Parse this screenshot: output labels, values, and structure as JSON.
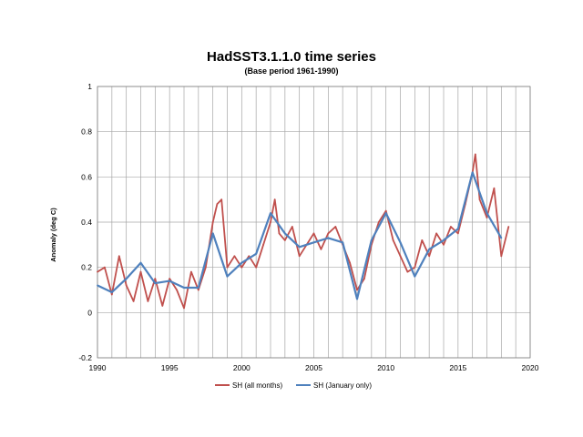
{
  "chart_data": {
    "type": "line",
    "title": "HadSST3.1.1.0  time series",
    "subtitle": "(Base period 1961-1990)",
    "xlabel": "",
    "ylabel": "Anomaly (deg C)",
    "xlim": [
      1990,
      2020
    ],
    "ylim": [
      -0.2,
      1
    ],
    "x_ticks": [
      "1990",
      "1995",
      "2000",
      "2005",
      "2010",
      "2015",
      "2020"
    ],
    "y_ticks": [
      "-0.2",
      "0",
      "0.2",
      "0.4",
      "0.6",
      "0.8",
      "1"
    ],
    "grid": true,
    "legend_position": "bottom",
    "series": [
      {
        "name": "SH (all months)",
        "color": "#C0504D",
        "x": [
          1990.0,
          1990.5,
          1991.0,
          1991.5,
          1992.0,
          1992.5,
          1993.0,
          1993.5,
          1994.0,
          1994.5,
          1995.0,
          1995.5,
          1996.0,
          1996.5,
          1997.0,
          1997.5,
          1998.0,
          1998.3,
          1998.6,
          1999.0,
          1999.5,
          2000.0,
          2000.5,
          2001.0,
          2001.5,
          2002.0,
          2002.3,
          2002.6,
          2003.0,
          2003.5,
          2004.0,
          2004.5,
          2005.0,
          2005.5,
          2006.0,
          2006.5,
          2007.0,
          2007.5,
          2008.0,
          2008.5,
          2009.0,
          2009.5,
          2010.0,
          2010.5,
          2011.0,
          2011.5,
          2012.0,
          2012.5,
          2013.0,
          2013.5,
          2014.0,
          2014.5,
          2015.0,
          2015.5,
          2016.0,
          2016.2,
          2016.5,
          2017.0,
          2017.5,
          2018.0,
          2018.5
        ],
        "values": [
          0.18,
          0.2,
          0.08,
          0.25,
          0.12,
          0.05,
          0.18,
          0.05,
          0.15,
          0.03,
          0.15,
          0.1,
          0.02,
          0.18,
          0.1,
          0.2,
          0.4,
          0.48,
          0.5,
          0.2,
          0.25,
          0.2,
          0.25,
          0.2,
          0.3,
          0.4,
          0.5,
          0.35,
          0.32,
          0.38,
          0.25,
          0.3,
          0.35,
          0.28,
          0.35,
          0.38,
          0.3,
          0.22,
          0.1,
          0.15,
          0.3,
          0.4,
          0.45,
          0.32,
          0.25,
          0.18,
          0.2,
          0.32,
          0.25,
          0.35,
          0.3,
          0.38,
          0.35,
          0.48,
          0.62,
          0.7,
          0.5,
          0.42,
          0.55,
          0.25,
          0.38
        ]
      },
      {
        "name": "SH (January only)",
        "color": "#4F81BD",
        "x": [
          1990,
          1991,
          1992,
          1993,
          1994,
          1995,
          1996,
          1997,
          1998,
          1999,
          2000,
          2001,
          2002,
          2003,
          2004,
          2005,
          2006,
          2007,
          2008,
          2009,
          2010,
          2011,
          2012,
          2013,
          2014,
          2015,
          2016,
          2017,
          2018
        ],
        "values": [
          0.12,
          0.09,
          0.15,
          0.22,
          0.13,
          0.14,
          0.11,
          0.11,
          0.35,
          0.16,
          0.22,
          0.26,
          0.44,
          0.35,
          0.29,
          0.31,
          0.33,
          0.31,
          0.06,
          0.32,
          0.44,
          0.31,
          0.16,
          0.28,
          0.32,
          0.37,
          0.62,
          0.44,
          0.33
        ]
      }
    ]
  }
}
